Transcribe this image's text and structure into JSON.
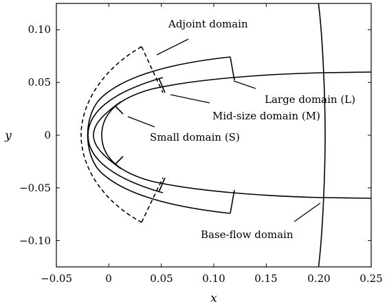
{
  "chart_data": {
    "type": "diagram",
    "xlabel": "x",
    "ylabel": "y",
    "xlim": [
      -0.05,
      0.25
    ],
    "ylim": [
      -0.125,
      0.125
    ],
    "x_ticks": [
      "−0.05",
      "0",
      "0.05",
      "0.10",
      "0.15",
      "0.20",
      "0.25"
    ],
    "x_tick_values": [
      -0.05,
      0,
      0.05,
      0.1,
      0.15,
      0.2,
      0.25
    ],
    "y_ticks": [
      "0.10",
      "0.05",
      "0",
      "−0.05",
      "−0.10"
    ],
    "y_tick_values": [
      0.1,
      0.05,
      0,
      -0.05,
      -0.1
    ],
    "annotations": [
      {
        "id": "adjoint",
        "text": "Adjoint domain"
      },
      {
        "id": "large",
        "text": "Large domain (L)"
      },
      {
        "id": "mid",
        "text": "Mid-size domain (M)"
      },
      {
        "id": "small",
        "text": "Small domain (S)"
      },
      {
        "id": "base",
        "text": "Base-flow domain"
      }
    ]
  }
}
